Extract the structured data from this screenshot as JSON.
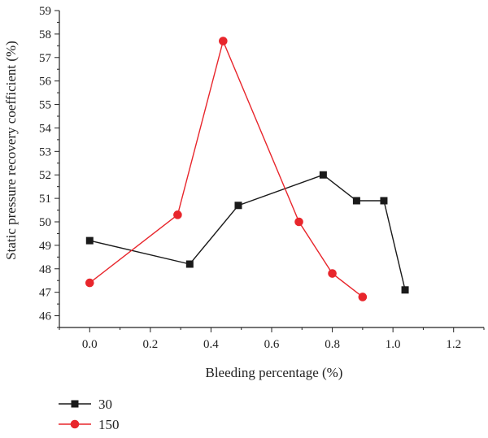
{
  "chart_data": {
    "type": "line",
    "xlabel": "Bleeding percentage (%)",
    "ylabel": "Static pressure recovery coefficient (%)",
    "xlim": [
      -0.1,
      1.3
    ],
    "ylim": [
      45.5,
      59
    ],
    "x_ticks": [
      "0.0",
      "0.2",
      "0.4",
      "0.6",
      "0.8",
      "1.0",
      "1.2"
    ],
    "y_ticks": [
      "46",
      "47",
      "48",
      "49",
      "50",
      "51",
      "52",
      "53",
      "54",
      "55",
      "56",
      "57",
      "58",
      "59"
    ],
    "x_tick_values": [
      0.0,
      0.2,
      0.4,
      0.6,
      0.8,
      1.0,
      1.2
    ],
    "y_tick_values": [
      46,
      47,
      48,
      49,
      50,
      51,
      52,
      53,
      54,
      55,
      56,
      57,
      58,
      59
    ],
    "legend_position": "bottom-left",
    "grid": false,
    "series": [
      {
        "name": "30",
        "color": "#1a1a1a",
        "marker": "square",
        "x": [
          0.0,
          0.33,
          0.49,
          0.77,
          0.88,
          0.97,
          1.04
        ],
        "y": [
          49.2,
          48.2,
          50.7,
          52.0,
          50.9,
          50.9,
          47.1
        ]
      },
      {
        "name": "150",
        "color": "#e8262c",
        "marker": "circle",
        "x": [
          0.0,
          0.29,
          0.44,
          0.69,
          0.8,
          0.9
        ],
        "y": [
          47.4,
          50.3,
          57.7,
          50.0,
          47.8,
          46.8
        ]
      }
    ]
  }
}
